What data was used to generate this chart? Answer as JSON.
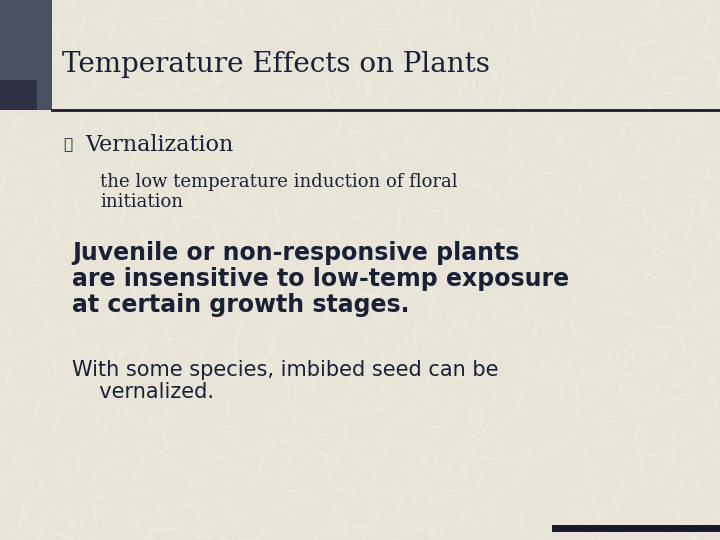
{
  "title": "Temperature Effects on Plants",
  "title_fontsize": 20,
  "title_color": "#1a2035",
  "background_color": "#e8e5d8",
  "accent_rect_color": "#4a4f62",
  "accent_bar_color": "#1a1a2e",
  "text_color": "#1a2035",
  "bullet1_label": "Vernalization",
  "bullet1_fontsize": 16,
  "sub_bullet1_line1": "the low temperature induction of floral",
  "sub_bullet1_line2": "initiation",
  "sub_fontsize": 13,
  "body2_line1": "Juvenile or non-responsive plants",
  "body2_line2": "are insensitive to low-temp exposure",
  "body2_line3": "at certain growth stages.",
  "body2_fontsize": 17,
  "body3_line1": "With some species, imbibed seed can be",
  "body3_line2": "  vernalized.",
  "body3_fontsize": 15
}
